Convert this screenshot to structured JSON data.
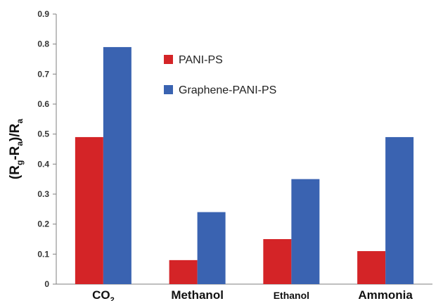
{
  "chart_data": {
    "type": "bar",
    "title": "",
    "xlabel": "",
    "ylabel": "(Rg-Ra)/Ra",
    "ylabel_parts": {
      "open": "(R",
      "sub1": "g",
      "mid": "-R",
      "sub2": "a",
      "close": ")/R",
      "sub3": "a"
    },
    "categories": [
      "CO2",
      "Methanol",
      "Ethanol",
      "Ammonia"
    ],
    "category_parts": [
      {
        "main": "CO",
        "sub": "2"
      },
      {
        "main": "Methanol",
        "sub": ""
      },
      {
        "main": "Ethanol",
        "sub": ""
      },
      {
        "main": "Ammonia",
        "sub": ""
      }
    ],
    "series": [
      {
        "name": "PANI-PS",
        "color": "#d42427",
        "values": [
          0.49,
          0.08,
          0.15,
          0.11
        ]
      },
      {
        "name": "Graphene-PANI-PS",
        "color": "#3a63b1",
        "values": [
          0.79,
          0.24,
          0.35,
          0.49
        ]
      }
    ],
    "ylim": [
      0,
      0.9
    ],
    "yticks": [
      "0",
      "0.1",
      "0.2",
      "0.3",
      "0.4",
      "0.5",
      "0.6",
      "0.7",
      "0.8",
      "0.9"
    ],
    "grid": false,
    "legend_position": "top-center"
  }
}
